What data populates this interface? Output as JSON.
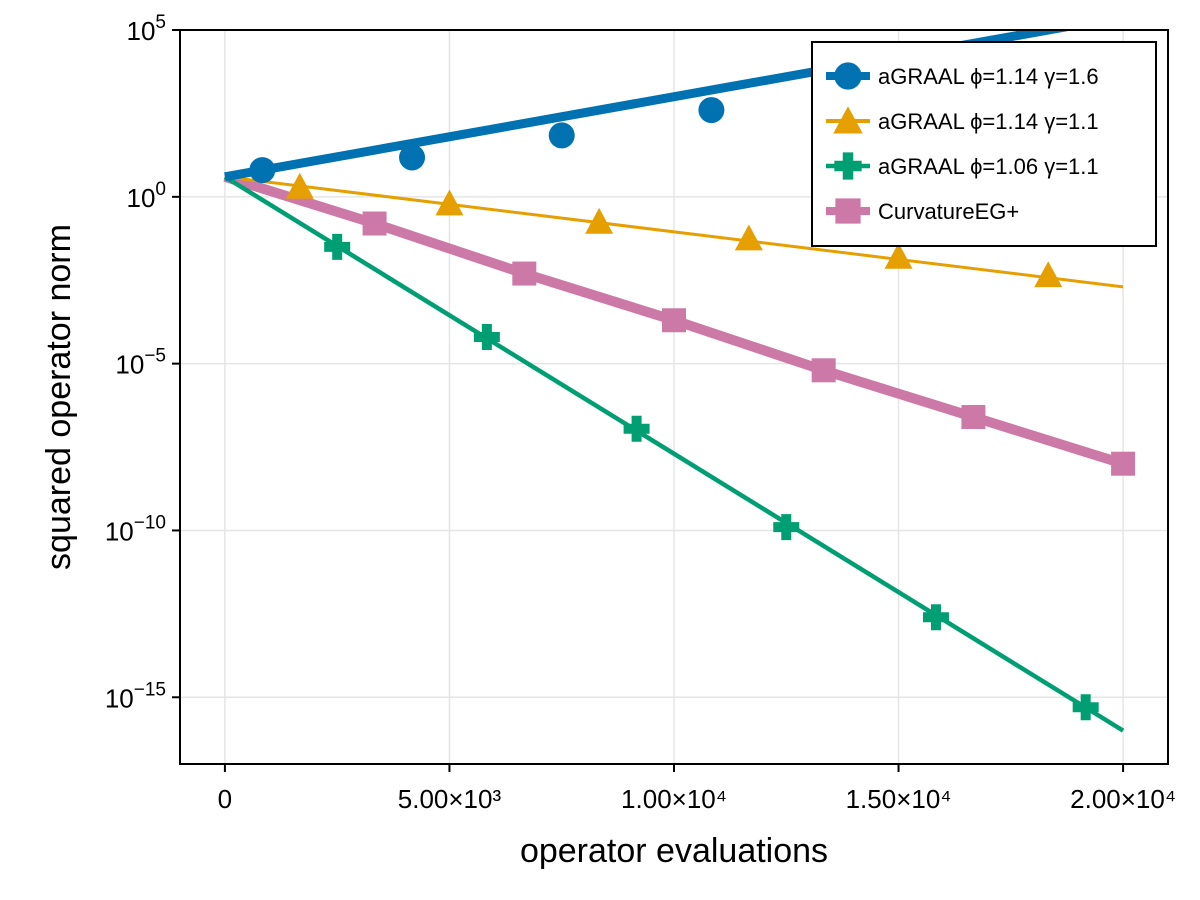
{
  "chart_data": {
    "type": "line",
    "title": "",
    "xlabel": "operator evaluations",
    "ylabel": "squared operator norm",
    "xlim": [
      -1000,
      21000
    ],
    "ylim_log10": [
      -17,
      5
    ],
    "yscale": "log",
    "grid": true,
    "legend_position": "top-right",
    "x_ticks": [
      {
        "value": 0,
        "label": "0"
      },
      {
        "value": 5000,
        "label": "5.00×10³"
      },
      {
        "value": 10000,
        "label": "1.00×10⁴"
      },
      {
        "value": 15000,
        "label": "1.50×10⁴"
      },
      {
        "value": 20000,
        "label": "2.00×10⁴"
      }
    ],
    "y_ticks": [
      {
        "exp": 5,
        "base": "10",
        "sup": "5"
      },
      {
        "exp": 0,
        "base": "10",
        "sup": "0"
      },
      {
        "exp": -5,
        "base": "10",
        "sup": "−5"
      },
      {
        "exp": -10,
        "base": "10",
        "sup": "−10"
      },
      {
        "exp": -15,
        "base": "10",
        "sup": "−15"
      }
    ],
    "series": [
      {
        "name": "aGRAAL ϕ=1.14 γ=1.6",
        "color": "#0072b2",
        "marker": "circle",
        "line_width": 9,
        "x": [
          0,
          20000
        ],
        "log10_y": [
          0.6,
          5.4
        ],
        "markers_x": [
          833,
          4167,
          7500,
          10833,
          14167
        ],
        "markers_log10_y": [
          0.8,
          1.18,
          1.84,
          2.6,
          3.41
        ]
      },
      {
        "name": "aGRAAL ϕ=1.14 γ=1.1",
        "color": "#e69f00",
        "marker": "triangle",
        "line_width": 3,
        "x": [
          0,
          20000
        ],
        "log10_y": [
          0.6,
          -2.7
        ],
        "markers_x": [
          1667,
          5000,
          8333,
          11667,
          15000,
          18333
        ],
        "markers_log10_y": [
          0.3,
          -0.2,
          -0.75,
          -1.25,
          -1.8,
          -2.35
        ]
      },
      {
        "name": "aGRAAL ϕ=1.06 γ=1.1",
        "color": "#009e73",
        "marker": "cross",
        "line_width": 4.5,
        "x": [
          0,
          20000
        ],
        "log10_y": [
          0.6,
          -16.0
        ],
        "markers_x": [
          2500,
          5833,
          9167,
          12500,
          15833,
          19167
        ],
        "markers_log10_y": [
          -1.5,
          -4.2,
          -6.95,
          -9.9,
          -12.6,
          -15.3
        ]
      },
      {
        "name": "CurvatureEG+",
        "color": "#cc79a7",
        "marker": "square",
        "line_width": 10,
        "x": [
          0,
          3333,
          6667,
          10000,
          13333,
          16667,
          20000
        ],
        "log10_y": [
          0.6,
          -0.8,
          -2.3,
          -3.7,
          -5.2,
          -6.6,
          -8.0
        ],
        "markers_x": [
          3333,
          6667,
          10000,
          13333,
          16667,
          20000
        ],
        "markers_log10_y": [
          -0.8,
          -2.3,
          -3.7,
          -5.2,
          -6.6,
          -8.0
        ]
      }
    ]
  }
}
